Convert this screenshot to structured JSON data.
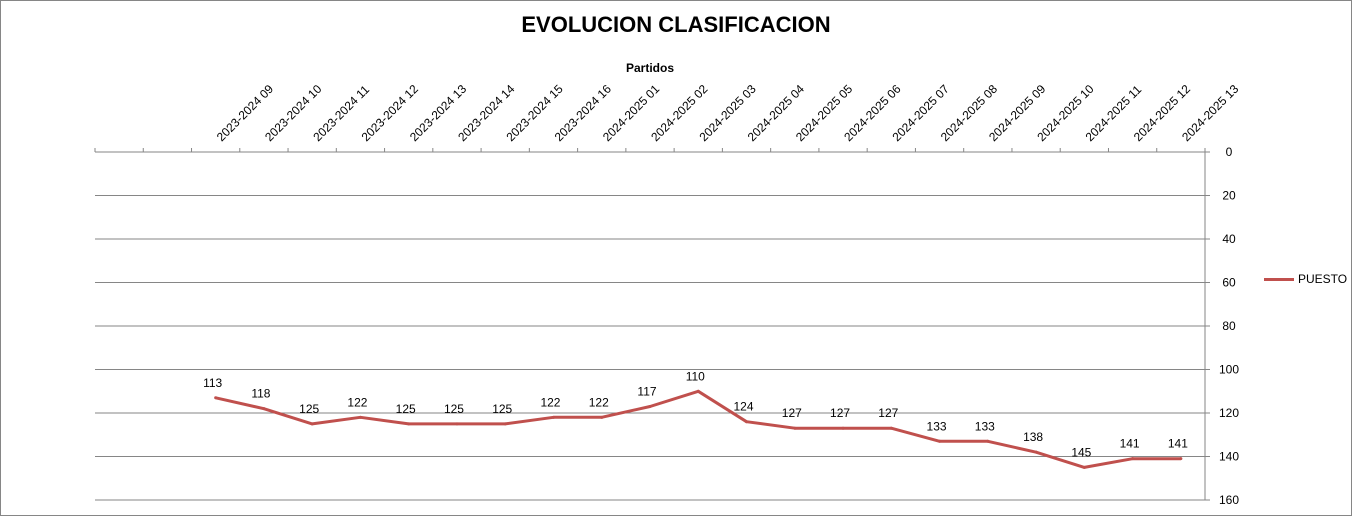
{
  "chart_data": {
    "type": "line",
    "title": "EVOLUCION CLASIFICACION",
    "xlabel": "Partidos",
    "ylabel": "",
    "categories": [
      "",
      "",
      "2023-2024 09",
      "2023-2024 10",
      "2023-2024 11",
      "2023-2024 12",
      "2023-2024 13",
      "2023-2024 14",
      "2023-2024 15",
      "2023-2024 16",
      "2024-2025 01",
      "2024-2025 02",
      "2024-2025 03",
      "2024-2025 04",
      "2024-2025 05",
      "2024-2025 06",
      "2024-2025 07",
      "2024-2025 08",
      "2024-2025 09",
      "2024-2025 10",
      "2024-2025 11",
      "2024-2025 12",
      "2024-2025 13"
    ],
    "series": [
      {
        "name": "PUESTO",
        "color": "#c0504d",
        "values": [
          null,
          null,
          113,
          118,
          125,
          122,
          125,
          125,
          125,
          122,
          122,
          117,
          110,
          124,
          127,
          127,
          127,
          133,
          133,
          138,
          145,
          141,
          141
        ]
      }
    ],
    "ylim": [
      0,
      160
    ],
    "yticks": [
      0,
      20,
      40,
      60,
      80,
      100,
      120,
      140,
      160
    ],
    "y_inverted": true,
    "y_axis_side": "right",
    "x_axis_side": "top",
    "grid": true,
    "legend": "right",
    "data_labels": true
  }
}
